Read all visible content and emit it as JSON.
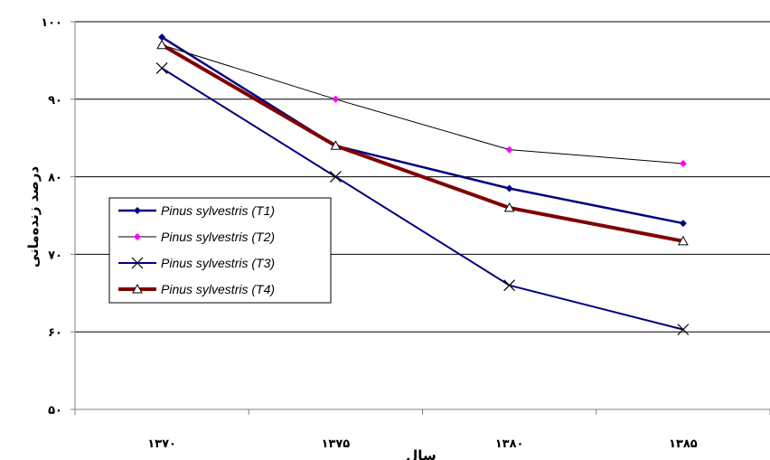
{
  "chart_data": {
    "type": "line",
    "title": "",
    "xlabel": "سال",
    "ylabel": "درصد زنده‌مانی",
    "categories": [
      "۱۳۷۰",
      "۱۳۷۵",
      "۱۳۸۰",
      "۱۳۸۵"
    ],
    "y_ticks": [
      "۵۰",
      "۶۰",
      "۷۰",
      "۸۰",
      "۹۰",
      "۱۰۰"
    ],
    "y_tick_values": [
      50,
      60,
      70,
      80,
      90,
      100
    ],
    "ylim": [
      50,
      100
    ],
    "grid": true,
    "legend_position": "left",
    "series": [
      {
        "name": "Pinus sylvestris (T1)",
        "values": [
          98,
          84,
          78.5,
          74
        ],
        "color": "#000080",
        "marker": "diamond"
      },
      {
        "name": "Pinus sylvestris (T2)",
        "values": [
          97,
          90,
          83.5,
          81.7
        ],
        "color": "#ff00ff",
        "marker": "diamond"
      },
      {
        "name": "Pinus sylvestris (T3)",
        "values": [
          94,
          80,
          66,
          60.3
        ],
        "color": "#000080",
        "marker": "x"
      },
      {
        "name": "Pinus sylvestris (T4)",
        "values": [
          97,
          84,
          76,
          71.7
        ],
        "color": "#800000",
        "marker": "triangle"
      }
    ]
  }
}
